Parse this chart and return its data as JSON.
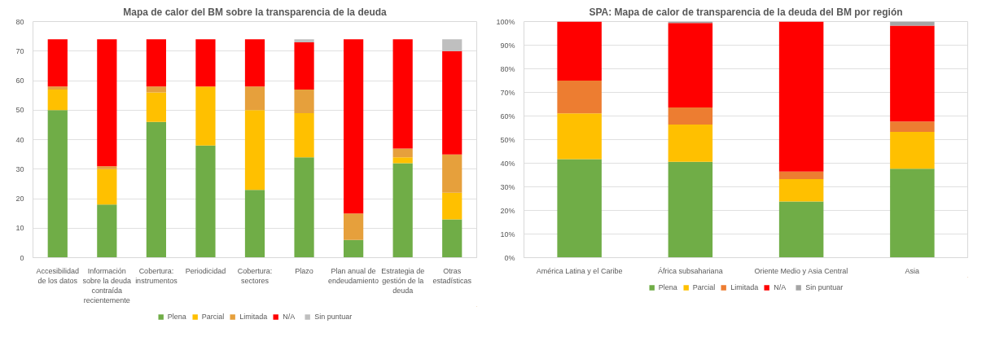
{
  "chart_data": [
    {
      "type": "bar",
      "title": "Mapa de calor del BM sobre la transparencia de la deuda",
      "stacked": true,
      "grid": "y",
      "legend": "bottom",
      "categories": [
        "Accesibilidad de los datos",
        "Información sobre la deuda contraída recientemente",
        "Cobertura: instrumentos",
        "Periodicidad",
        "Cobertura: sectores",
        "Plazo",
        "Plan anual de endeudamiento",
        "Estrategia de gestión de la deuda",
        "Otras estadísticas"
      ],
      "ylim": [
        0,
        80
      ],
      "yticks": [
        0,
        10,
        20,
        30,
        40,
        50,
        60,
        70,
        80
      ],
      "series": [
        {
          "name": "Plena",
          "color": "#70ad47",
          "values": [
            50,
            18,
            46,
            38,
            23,
            34,
            6,
            32,
            13
          ]
        },
        {
          "name": "Parcial",
          "color": "#ffc000",
          "values": [
            7,
            12,
            10,
            20,
            27,
            15,
            0,
            2,
            9
          ]
        },
        {
          "name": "Limitada",
          "color": "#e6a03c",
          "values": [
            1,
            1,
            2,
            0,
            8,
            8,
            9,
            3,
            13
          ]
        },
        {
          "name": "N/A",
          "color": "#ff0000",
          "values": [
            16,
            43,
            16,
            16,
            16,
            16,
            59,
            37,
            35
          ]
        },
        {
          "name": "Sin puntuar",
          "color": "#bfbfbf",
          "values": [
            0,
            0,
            0,
            0,
            0,
            1,
            0,
            0,
            4
          ]
        }
      ]
    },
    {
      "type": "bar",
      "title": "SPA: Mapa de calor de transparencia de la deuda del BM por región",
      "stacked": true,
      "grid": "y",
      "legend": "bottom",
      "categories": [
        "América Latina y el Caribe",
        "África subsahariana",
        "Oriente Medio y Asia Central",
        "Asia"
      ],
      "ylim": [
        0,
        100
      ],
      "yticks": [
        {
          "value": 0,
          "label": "0%"
        },
        {
          "value": 10,
          "label": "10%"
        },
        {
          "value": 20,
          "label": "20%"
        },
        {
          "value": 30,
          "label": "30%"
        },
        {
          "value": 40,
          "label": "40%"
        },
        {
          "value": 50,
          "label": "50%"
        },
        {
          "value": 60,
          "label": "60%"
        },
        {
          "value": 70,
          "label": "70%"
        },
        {
          "value": 80,
          "label": "80%"
        },
        {
          "value": 90,
          "label": "90%"
        },
        {
          "value": 100,
          "label": "100%"
        }
      ],
      "series": [
        {
          "name": "Plena",
          "color": "#70ad47",
          "values": [
            41.7,
            40.6,
            23.8,
            37.7
          ]
        },
        {
          "name": "Parcial",
          "color": "#ffc000",
          "values": [
            19.4,
            15.8,
            9.5,
            15.6
          ]
        },
        {
          "name": "Limitada",
          "color": "#ed7d31",
          "values": [
            13.9,
            7.2,
            3.2,
            4.4
          ]
        },
        {
          "name": "N/A",
          "color": "#ff0000",
          "values": [
            25.0,
            35.8,
            63.5,
            40.6
          ]
        },
        {
          "name": "Sin puntuar",
          "color": "#a5a5a5",
          "values": [
            0,
            0.6,
            0,
            1.7
          ]
        }
      ]
    }
  ]
}
